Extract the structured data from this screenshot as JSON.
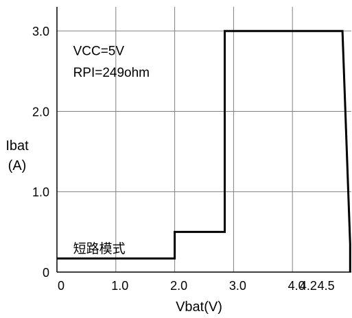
{
  "chart_data": {
    "type": "line",
    "title": "",
    "xlabel": "Vbat(V)",
    "ylabel_lines": [
      "Ibat",
      "(A)"
    ],
    "xlim": [
      0,
      5.0
    ],
    "ylim": [
      0,
      3.3
    ],
    "grid": true,
    "x_ticks": [
      {
        "label": "0",
        "value": 0
      },
      {
        "label": "1.0",
        "value": 1.0
      },
      {
        "label": "2.0",
        "value": 2.0
      },
      {
        "label": "3.0",
        "value": 3.0
      },
      {
        "label": "4.0",
        "value": 4.0
      },
      {
        "label": "4.2",
        "value": 4.2
      },
      {
        "label": "4.5",
        "value": 4.5
      }
    ],
    "y_ticks": [
      {
        "label": "0",
        "value": 0
      },
      {
        "label": "1.0",
        "value": 1.0
      },
      {
        "label": "2.0",
        "value": 2.0
      },
      {
        "label": "3.0",
        "value": 3.0
      }
    ],
    "series": [
      {
        "x": [
          0,
          2.0,
          2.0,
          2.85,
          2.85,
          4.85,
          4.85,
          4.98,
          4.98
        ],
        "y": [
          0.17,
          0.17,
          0.5,
          0.5,
          3.0,
          3.0,
          3.0,
          0.35,
          0
        ]
      }
    ],
    "annotations": [
      {
        "text": "VCC=5V",
        "x": 0.1,
        "y": 2.7
      },
      {
        "text": "RPI=249ohm",
        "x": 0.1,
        "y": 2.43
      },
      {
        "text": "短路模式",
        "x": 0.1,
        "y": 0.24
      }
    ],
    "colors": {
      "line": "#000000",
      "grid": "#7f7f7f",
      "axes": "#000000"
    }
  }
}
